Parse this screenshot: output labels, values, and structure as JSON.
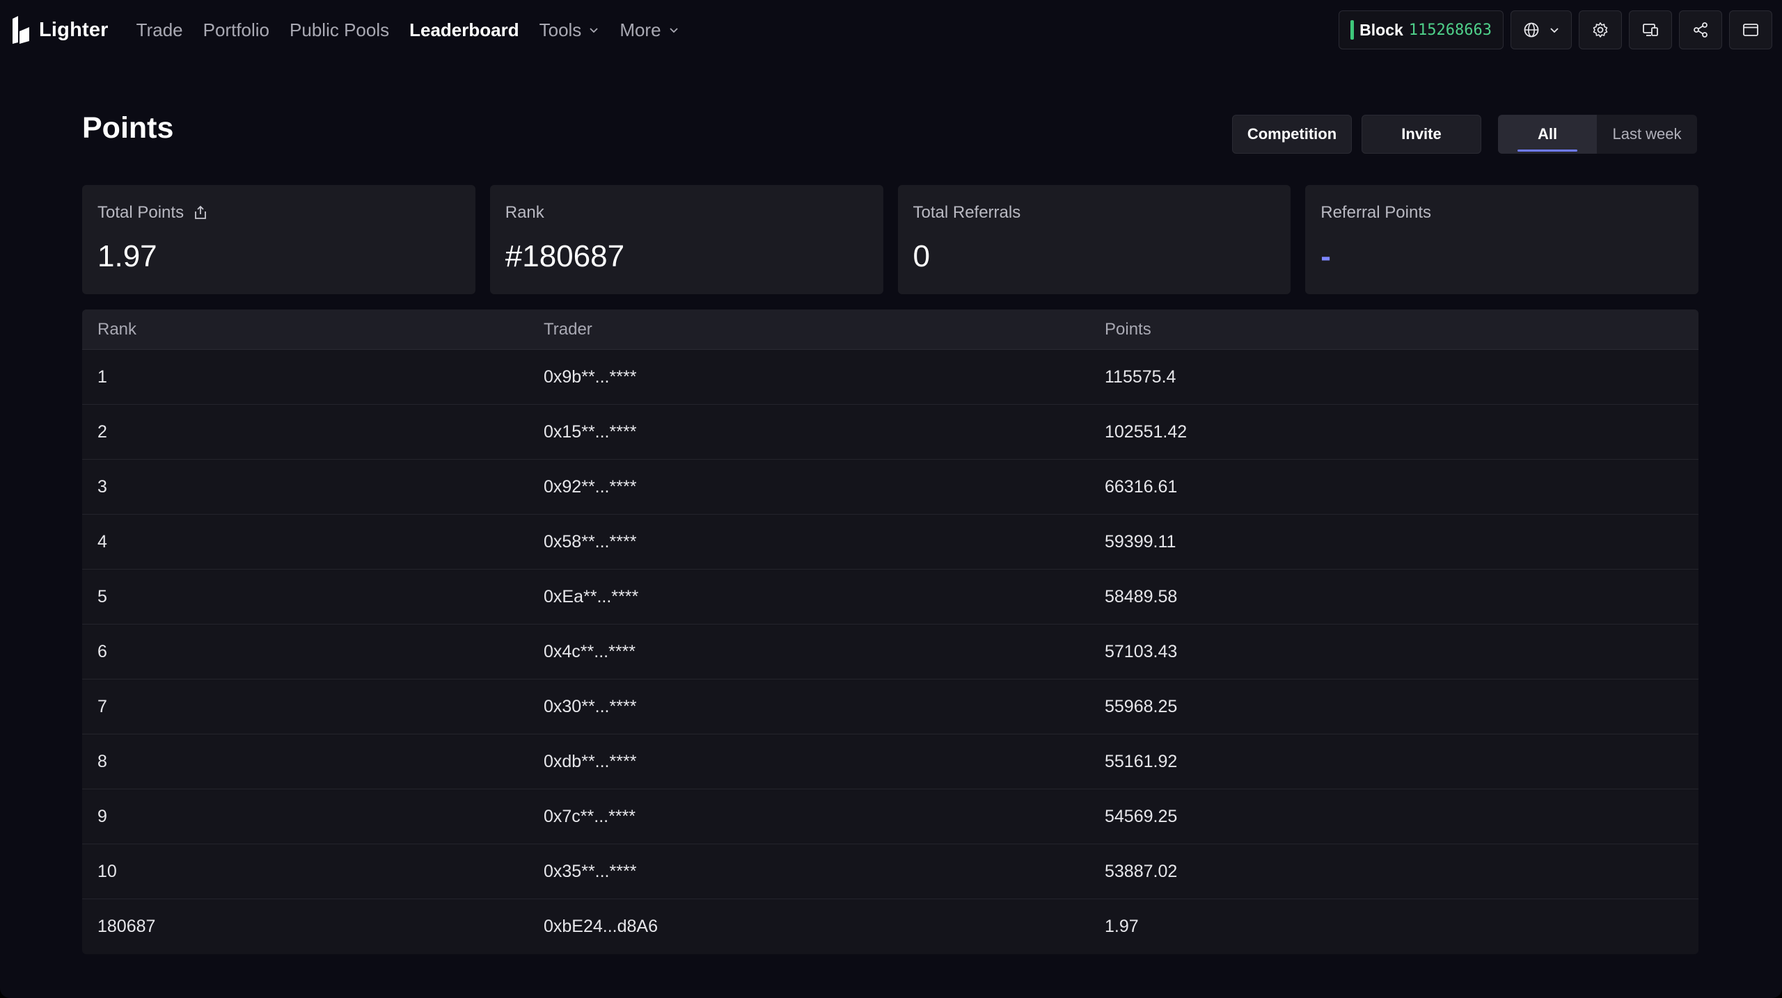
{
  "brand": {
    "name": "Lighter"
  },
  "nav": {
    "items": [
      {
        "label": "Trade"
      },
      {
        "label": "Portfolio"
      },
      {
        "label": "Public Pools"
      },
      {
        "label": "Leaderboard"
      },
      {
        "label": "Tools"
      },
      {
        "label": "More"
      }
    ]
  },
  "header": {
    "block_label": "Block",
    "block_number": "115268663",
    "icons": [
      "globe-icon",
      "settings-gear-icon",
      "devices-icon",
      "share-icon",
      "wallet-icon"
    ]
  },
  "page": {
    "title": "Points",
    "buttons": {
      "competition": "Competition",
      "invite": "Invite"
    },
    "period_tabs": {
      "all": "All",
      "last_week": "Last week"
    }
  },
  "stats": [
    {
      "label": "Total Points",
      "value": "1.97"
    },
    {
      "label": "Rank",
      "value": "#180687"
    },
    {
      "label": "Total Referrals",
      "value": "0"
    },
    {
      "label": "Referral Points",
      "value": "-"
    }
  ],
  "table": {
    "headers": {
      "rank": "Rank",
      "trader": "Trader",
      "points": "Points"
    },
    "rows": [
      {
        "rank": "1",
        "trader": "0x9b**...****",
        "points": "115575.4"
      },
      {
        "rank": "2",
        "trader": "0x15**...****",
        "points": "102551.42"
      },
      {
        "rank": "3",
        "trader": "0x92**...****",
        "points": "66316.61"
      },
      {
        "rank": "4",
        "trader": "0x58**...****",
        "points": "59399.11"
      },
      {
        "rank": "5",
        "trader": "0xEa**...****",
        "points": "58489.58"
      },
      {
        "rank": "6",
        "trader": "0x4c**...****",
        "points": "57103.43"
      },
      {
        "rank": "7",
        "trader": "0x30**...****",
        "points": "55968.25"
      },
      {
        "rank": "8",
        "trader": "0xdb**...****",
        "points": "55161.92"
      },
      {
        "rank": "9",
        "trader": "0x7c**...****",
        "points": "54569.25"
      },
      {
        "rank": "10",
        "trader": "0x35**...****",
        "points": "53887.02"
      },
      {
        "rank": "180687",
        "trader": "0xbE24...d8A6",
        "points": "1.97"
      }
    ]
  },
  "colors": {
    "background": "#0b0b14",
    "card": "#1b1b22",
    "accent": "#6f7bff",
    "block_green": "#4fd08a"
  }
}
